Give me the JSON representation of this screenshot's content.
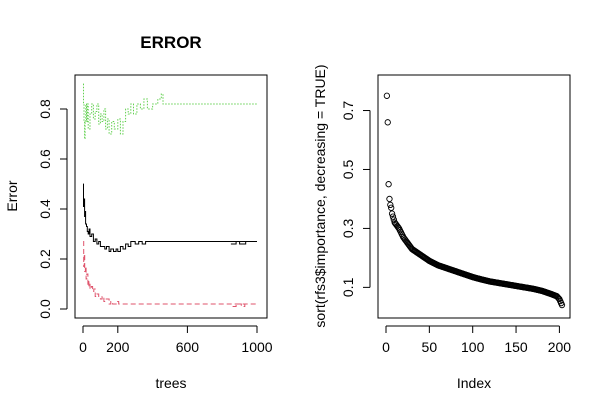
{
  "chart_data": [
    {
      "type": "line",
      "title": "ERROR",
      "xlabel": "trees",
      "ylabel": "Error",
      "xlim": [
        0,
        1000
      ],
      "ylim": [
        0,
        0.9
      ],
      "x_ticks": [
        {
          "value": 0,
          "label": "0"
        },
        {
          "value": 200,
          "label": "200"
        },
        {
          "value": 600,
          "label": "600"
        },
        {
          "value": 1000,
          "label": "1000"
        }
      ],
      "y_ticks": [
        {
          "value": 0.0,
          "label": "0.0"
        },
        {
          "value": 0.2,
          "label": "0.2"
        },
        {
          "value": 0.4,
          "label": "0.4"
        },
        {
          "value": 0.6,
          "label": "0.6"
        },
        {
          "value": 0.8,
          "label": "0.8"
        }
      ],
      "grid": false,
      "legend": "none",
      "series": [
        {
          "color": "#000000",
          "dash": "solid",
          "points": [
            [
              1,
              0.5
            ],
            [
              3,
              0.41
            ],
            [
              6,
              0.44
            ],
            [
              9,
              0.37
            ],
            [
              12,
              0.39
            ],
            [
              15,
              0.34
            ],
            [
              20,
              0.33
            ],
            [
              25,
              0.31
            ],
            [
              30,
              0.3
            ],
            [
              35,
              0.32
            ],
            [
              40,
              0.29
            ],
            [
              50,
              0.3
            ],
            [
              60,
              0.27
            ],
            [
              70,
              0.28
            ],
            [
              80,
              0.26
            ],
            [
              90,
              0.27
            ],
            [
              100,
              0.25
            ],
            [
              115,
              0.25
            ],
            [
              125,
              0.24
            ],
            [
              135,
              0.25
            ],
            [
              150,
              0.23
            ],
            [
              160,
              0.24
            ],
            [
              175,
              0.23
            ],
            [
              190,
              0.24
            ],
            [
              200,
              0.23
            ],
            [
              215,
              0.25
            ],
            [
              230,
              0.24
            ],
            [
              245,
              0.26
            ],
            [
              260,
              0.25
            ],
            [
              275,
              0.27
            ],
            [
              300,
              0.26
            ],
            [
              320,
              0.27
            ],
            [
              340,
              0.26
            ],
            [
              360,
              0.27
            ],
            [
              1000,
              0.27
            ]
          ],
          "notes_steps": [
            [
              850,
              0.26
            ],
            [
              880,
              0.27
            ],
            [
              900,
              0.26
            ],
            [
              935,
              0.27
            ]
          ]
        },
        {
          "color": "#df536b",
          "dash": "dashed",
          "points": [
            [
              1,
              0.27
            ],
            [
              4,
              0.17
            ],
            [
              7,
              0.22
            ],
            [
              10,
              0.15
            ],
            [
              14,
              0.17
            ],
            [
              18,
              0.12
            ],
            [
              22,
              0.14
            ],
            [
              28,
              0.09
            ],
            [
              34,
              0.11
            ],
            [
              40,
              0.08
            ],
            [
              48,
              0.09
            ],
            [
              55,
              0.07
            ],
            [
              62,
              0.08
            ],
            [
              70,
              0.05
            ],
            [
              80,
              0.06
            ],
            [
              90,
              0.05
            ],
            [
              100,
              0.04
            ],
            [
              110,
              0.05
            ],
            [
              120,
              0.03
            ],
            [
              130,
              0.04
            ],
            [
              150,
              0.02
            ],
            [
              160,
              0.03
            ],
            [
              170,
              0.02
            ],
            [
              185,
              0.02
            ],
            [
              195,
              0.03
            ],
            [
              205,
              0.02
            ],
            [
              1000,
              0.02
            ]
          ],
          "notes_steps": [
            [
              860,
              0.01
            ],
            [
              880,
              0.02
            ],
            [
              910,
              0.01
            ],
            [
              930,
              0.02
            ]
          ]
        },
        {
          "color": "#61d04f",
          "dash": "dotted",
          "points": [
            [
              1,
              0.9
            ],
            [
              3,
              0.82
            ],
            [
              6,
              0.75
            ],
            [
              9,
              0.68
            ],
            [
              12,
              0.75
            ],
            [
              16,
              0.82
            ],
            [
              20,
              0.75
            ],
            [
              25,
              0.82
            ],
            [
              30,
              0.72
            ],
            [
              40,
              0.78
            ],
            [
              50,
              0.82
            ],
            [
              60,
              0.76
            ],
            [
              70,
              0.79
            ],
            [
              80,
              0.82
            ],
            [
              90,
              0.74
            ],
            [
              100,
              0.78
            ],
            [
              110,
              0.75
            ],
            [
              120,
              0.8
            ],
            [
              130,
              0.72
            ],
            [
              140,
              0.76
            ],
            [
              150,
              0.7
            ],
            [
              165,
              0.75
            ],
            [
              180,
              0.72
            ],
            [
              200,
              0.76
            ],
            [
              215,
              0.7
            ],
            [
              230,
              0.75
            ],
            [
              245,
              0.8
            ],
            [
              260,
              0.78
            ],
            [
              275,
              0.82
            ],
            [
              290,
              0.78
            ],
            [
              310,
              0.82
            ],
            [
              330,
              0.8
            ],
            [
              350,
              0.84
            ],
            [
              370,
              0.8
            ],
            [
              400,
              0.82
            ],
            [
              430,
              0.84
            ],
            [
              450,
              0.86
            ],
            [
              460,
              0.82
            ],
            [
              1000,
              0.82
            ]
          ]
        }
      ]
    },
    {
      "type": "scatter",
      "title": "",
      "xlabel": "Index",
      "ylabel": "sort(rfs3$importance, decreasing = TRUE)",
      "xlim": [
        0,
        203
      ],
      "ylim": [
        0.03,
        0.79
      ],
      "x_ticks": [
        {
          "value": 0,
          "label": "0"
        },
        {
          "value": 50,
          "label": "50"
        },
        {
          "value": 100,
          "label": "100"
        },
        {
          "value": 150,
          "label": "150"
        },
        {
          "value": 200,
          "label": "200"
        }
      ],
      "y_ticks": [
        {
          "value": 0.1,
          "label": "0.1"
        },
        {
          "value": 0.3,
          "label": "0.3"
        },
        {
          "value": 0.5,
          "label": "0.5"
        },
        {
          "value": 0.7,
          "label": "0.7"
        }
      ],
      "grid": false,
      "legend": "none",
      "marker": "open-circle",
      "n_points": 203,
      "leading_values": [
        0.75,
        0.66,
        0.45,
        0.4,
        0.38,
        0.37,
        0.35,
        0.34,
        0.33,
        0.32
      ],
      "curve_anchors": [
        [
          10,
          0.32
        ],
        [
          15,
          0.3
        ],
        [
          20,
          0.27
        ],
        [
          25,
          0.25
        ],
        [
          30,
          0.23
        ],
        [
          40,
          0.21
        ],
        [
          50,
          0.19
        ],
        [
          60,
          0.175
        ],
        [
          70,
          0.165
        ],
        [
          80,
          0.155
        ],
        [
          90,
          0.145
        ],
        [
          100,
          0.135
        ],
        [
          110,
          0.127
        ],
        [
          120,
          0.12
        ],
        [
          130,
          0.115
        ],
        [
          140,
          0.11
        ],
        [
          150,
          0.105
        ],
        [
          160,
          0.1
        ],
        [
          170,
          0.095
        ],
        [
          180,
          0.088
        ],
        [
          190,
          0.078
        ],
        [
          197,
          0.07
        ],
        [
          200,
          0.06
        ],
        [
          203,
          0.04
        ]
      ]
    }
  ]
}
